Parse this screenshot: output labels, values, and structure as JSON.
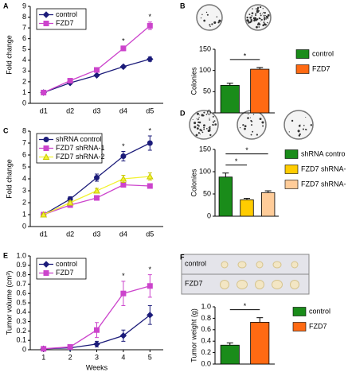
{
  "chart_data": [
    {
      "type": "line",
      "panel": "A",
      "ylabel": "Fold change",
      "categories": [
        "d1",
        "d2",
        "d3",
        "d4",
        "d5"
      ],
      "ylim": [
        0,
        9
      ],
      "yticks": [
        0,
        1,
        2,
        3,
        4,
        5,
        6,
        7,
        8,
        9
      ],
      "legend": "top-left",
      "series": [
        {
          "name": "control",
          "color": "#1c1c7a",
          "marker": "diamond",
          "values": [
            1,
            1.9,
            2.6,
            3.4,
            4.1
          ],
          "errors": [
            0.05,
            0.1,
            0.1,
            0.12,
            0.2
          ]
        },
        {
          "name": "FZD7",
          "color": "#cc44cc",
          "marker": "square",
          "values": [
            1,
            2.1,
            3.1,
            5.1,
            7.2
          ],
          "errors": [
            0.05,
            0.1,
            0.12,
            0.22,
            0.35
          ]
        }
      ],
      "annotations": [
        "*",
        "*"
      ],
      "annotation_colors": [
        "#2e9e2e",
        "#000000"
      ]
    },
    {
      "type": "bar",
      "panel": "B",
      "ylabel": "Colonies",
      "categories": [
        "control",
        "FZD7"
      ],
      "values": [
        65,
        103
      ],
      "errors": [
        5,
        4
      ],
      "colors": [
        "#1a8c1a",
        "#ff6a13"
      ],
      "ylim": [
        0,
        150
      ],
      "yticks": [
        0,
        50,
        100,
        150
      ],
      "legend": "right",
      "annotations": [
        "*"
      ]
    },
    {
      "type": "line",
      "panel": "C",
      "ylabel": "Fold change",
      "categories": [
        "d1",
        "d2",
        "d3",
        "d4",
        "d5"
      ],
      "ylim": [
        0,
        8
      ],
      "yticks": [
        0,
        1,
        2,
        3,
        4,
        5,
        6,
        7,
        8
      ],
      "legend": "top-left",
      "series": [
        {
          "name": "shRNA control",
          "color": "#1c1c7a",
          "marker": "circle",
          "values": [
            1,
            2.3,
            4.1,
            5.9,
            7.0
          ],
          "errors": [
            0.05,
            0.2,
            0.3,
            0.4,
            0.6
          ]
        },
        {
          "name": "FZD7 shRNA-1",
          "color": "#cc44cc",
          "marker": "square",
          "values": [
            1,
            1.8,
            2.4,
            3.5,
            3.4
          ],
          "errors": [
            0.05,
            0.1,
            0.15,
            0.2,
            0.2
          ]
        },
        {
          "name": "FZD7 shRNA-2",
          "color": "#f2f230",
          "marker": "triangle",
          "values": [
            1,
            2.0,
            3.0,
            4.0,
            4.2
          ],
          "errors": [
            0.05,
            0.15,
            0.2,
            0.3,
            0.3
          ]
        }
      ],
      "annotations": [
        "*",
        "*"
      ],
      "annotation_colors": [
        "#000000",
        "#000000"
      ]
    },
    {
      "type": "bar",
      "panel": "D",
      "ylabel": "Colonies",
      "categories": [
        "shRNA contro",
        "FZD7 shRNA-",
        "FZD7 shRNA-"
      ],
      "values": [
        88,
        37,
        53
      ],
      "errors": [
        9,
        3,
        4
      ],
      "colors": [
        "#1a8c1a",
        "#ffcc00",
        "#ffcc99"
      ],
      "ylim": [
        0,
        150
      ],
      "yticks": [
        0,
        50,
        100,
        150
      ],
      "legend": "right",
      "annotations": [
        "*",
        "*"
      ]
    },
    {
      "type": "line",
      "panel": "E",
      "ylabel": "Tumor volume (cm³)",
      "xlabel": "Weeks",
      "x": [
        1,
        2,
        3,
        4,
        5
      ],
      "xlim": [
        0.5,
        5.5
      ],
      "xticks": [
        1,
        2,
        3,
        4,
        5
      ],
      "ylim": [
        0,
        1
      ],
      "yticks": [
        0,
        0.1,
        0.2,
        0.3,
        0.4,
        0.5,
        0.6,
        0.7,
        0.8,
        0.9,
        {
          "value": 1,
          "label": "1.0"
        }
      ],
      "legend": "top-left",
      "series": [
        {
          "name": "control",
          "color": "#1c1c7a",
          "marker": "diamond",
          "values": [
            0.01,
            0.02,
            0.06,
            0.15,
            0.37
          ],
          "errors": [
            0.005,
            0.01,
            0.03,
            0.06,
            0.1
          ]
        },
        {
          "name": "FZD7",
          "color": "#cc44cc",
          "marker": "square",
          "values": [
            0.01,
            0.03,
            0.21,
            0.6,
            0.68
          ],
          "errors": [
            0.005,
            0.01,
            0.08,
            0.13,
            0.12
          ]
        }
      ],
      "annotations": [
        "*",
        "*"
      ],
      "annotation_colors": [
        "#000000",
        "#000000"
      ]
    },
    {
      "type": "bar",
      "panel": "F",
      "ylabel": "Tumor weight (g)",
      "categories": [
        "control",
        "FZD7"
      ],
      "values": [
        0.33,
        0.73
      ],
      "errors": [
        0.04,
        0.08
      ],
      "colors": [
        "#1a8c1a",
        "#ff6a13"
      ],
      "ylim": [
        0,
        1
      ],
      "yticks": [
        {
          "value": 0,
          "label": "0.0"
        },
        0.2,
        0.4,
        0.6,
        0.8,
        {
          "value": 1,
          "label": "1.0"
        }
      ],
      "legend": "right",
      "annotations": [
        "*"
      ],
      "row_labels": [
        "control",
        "FZD7"
      ]
    }
  ]
}
